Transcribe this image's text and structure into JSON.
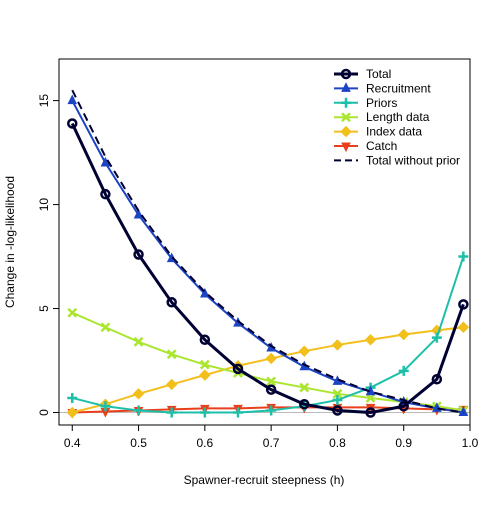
{
  "chart_data": {
    "type": "line",
    "title": "",
    "xlabel": "Spawner-recruit steepness (h)",
    "ylabel": "Change in -log-likelihood",
    "xlim": [
      0.38,
      1.0
    ],
    "ylim": [
      -0.6,
      17.0
    ],
    "x_ticks": [
      0.4,
      0.5,
      0.6,
      0.7,
      0.8,
      0.9,
      1.0
    ],
    "x_tick_labels": [
      "0.4",
      "0.5",
      "0.6",
      "0.7",
      "0.8",
      "0.9",
      "1.0"
    ],
    "y_ticks": [
      0,
      5,
      10,
      15
    ],
    "y_tick_labels": [
      "0",
      "5",
      "10",
      "15"
    ],
    "reference_line_y": 0,
    "reference_line_color": "#bbbbbb",
    "grid": false,
    "legend_position": "top-right",
    "x": [
      0.4,
      0.45,
      0.5,
      0.55,
      0.6,
      0.65,
      0.7,
      0.75,
      0.8,
      0.85,
      0.9,
      0.95,
      0.99
    ],
    "series": [
      {
        "name": "Total",
        "color": "#000033",
        "marker": "circle",
        "line_width": 3,
        "dash": false,
        "values": [
          13.9,
          10.5,
          7.6,
          5.3,
          3.5,
          2.1,
          1.1,
          0.4,
          0.1,
          0.0,
          0.3,
          1.6,
          5.2
        ]
      },
      {
        "name": "Recruitment",
        "color": "#1c44c4",
        "marker": "triangle-up",
        "line_width": 2,
        "dash": false,
        "values": [
          15.0,
          12.0,
          9.5,
          7.4,
          5.7,
          4.3,
          3.1,
          2.2,
          1.5,
          1.0,
          0.5,
          0.2,
          0.0
        ]
      },
      {
        "name": "Priors",
        "color": "#1ebfa8",
        "marker": "plus",
        "line_width": 2,
        "dash": false,
        "values": [
          0.7,
          0.3,
          0.1,
          0.0,
          0.0,
          0.0,
          0.1,
          0.3,
          0.6,
          1.2,
          2.0,
          3.6,
          7.5
        ]
      },
      {
        "name": "Length data",
        "color": "#aae630",
        "marker": "x",
        "line_width": 2,
        "dash": false,
        "values": [
          4.8,
          4.1,
          3.4,
          2.8,
          2.3,
          1.9,
          1.5,
          1.2,
          0.9,
          0.7,
          0.5,
          0.3,
          0.1
        ]
      },
      {
        "name": "Index data",
        "color": "#f2bf1b",
        "marker": "diamond",
        "line_width": 2,
        "dash": false,
        "values": [
          0.0,
          0.4,
          0.9,
          1.35,
          1.8,
          2.25,
          2.6,
          2.95,
          3.25,
          3.5,
          3.75,
          3.95,
          4.1
        ]
      },
      {
        "name": "Catch",
        "color": "#e8401c",
        "marker": "triangle-down",
        "line_width": 2,
        "dash": false,
        "values": [
          0.0,
          0.05,
          0.1,
          0.15,
          0.2,
          0.2,
          0.25,
          0.25,
          0.25,
          0.25,
          0.2,
          0.15,
          0.15
        ]
      },
      {
        "name": "Total without prior",
        "color": "#000033",
        "marker": "none",
        "line_width": 2,
        "dash": true,
        "values": [
          15.5,
          12.3,
          9.7,
          7.5,
          5.8,
          4.4,
          3.2,
          2.3,
          1.6,
          1.0,
          0.6,
          0.2,
          0.0
        ]
      }
    ]
  }
}
